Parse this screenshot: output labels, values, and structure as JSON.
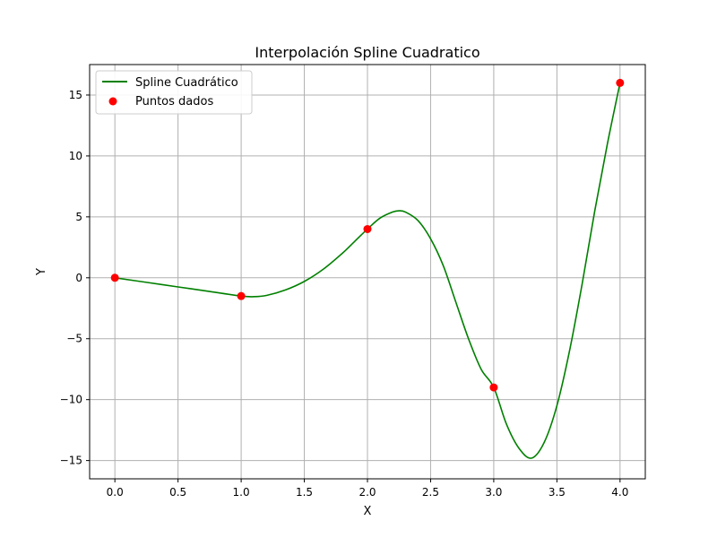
{
  "chart_data": {
    "type": "line",
    "title": "Interpolación Spline Cuadratico",
    "xlabel": "X",
    "ylabel": "Y",
    "xlim": [
      -0.2,
      4.2
    ],
    "ylim": [
      -16.5,
      17.5
    ],
    "xticks": [
      0.0,
      0.5,
      1.0,
      1.5,
      2.0,
      2.5,
      3.0,
      3.5,
      4.0
    ],
    "xtick_labels": [
      "0.0",
      "0.5",
      "1.0",
      "1.5",
      "2.0",
      "2.5",
      "3.0",
      "3.5",
      "4.0"
    ],
    "yticks": [
      -15,
      -10,
      -5,
      0,
      5,
      10,
      15
    ],
    "ytick_labels": [
      "−15",
      "−10",
      "−5",
      "0",
      "5",
      "10",
      "15"
    ],
    "grid": true,
    "legend_position": "upper-left",
    "series": [
      {
        "name": "Spline Cuadrático",
        "kind": "line",
        "color": "#008000",
        "x": [
          0.0,
          0.25,
          0.5,
          0.75,
          1.0,
          1.1,
          1.2,
          1.35,
          1.5,
          1.65,
          1.8,
          1.9,
          2.0,
          2.1,
          2.2,
          2.25,
          2.3,
          2.4,
          2.5,
          2.6,
          2.7,
          2.8,
          2.9,
          3.0,
          3.1,
          3.2,
          3.3,
          3.4,
          3.5,
          3.6,
          3.7,
          3.8,
          3.9,
          4.0
        ],
        "y": [
          0.0,
          -0.375,
          -0.75,
          -1.125,
          -1.5,
          -1.55,
          -1.45,
          -1.0,
          -0.3,
          0.7,
          2.0,
          3.0,
          4.0,
          4.9,
          5.4,
          5.5,
          5.4,
          4.7,
          3.2,
          1.0,
          -2.0,
          -5.0,
          -7.5,
          -9.0,
          -12.0,
          -14.0,
          -14.8,
          -13.5,
          -10.5,
          -6.0,
          -0.5,
          5.5,
          11.0,
          16.0
        ]
      },
      {
        "name": "Puntos dados",
        "kind": "scatter",
        "color": "#ff0000",
        "x": [
          0,
          1,
          2,
          3,
          4
        ],
        "y": [
          0,
          -1.5,
          4,
          -9,
          16
        ]
      }
    ]
  }
}
